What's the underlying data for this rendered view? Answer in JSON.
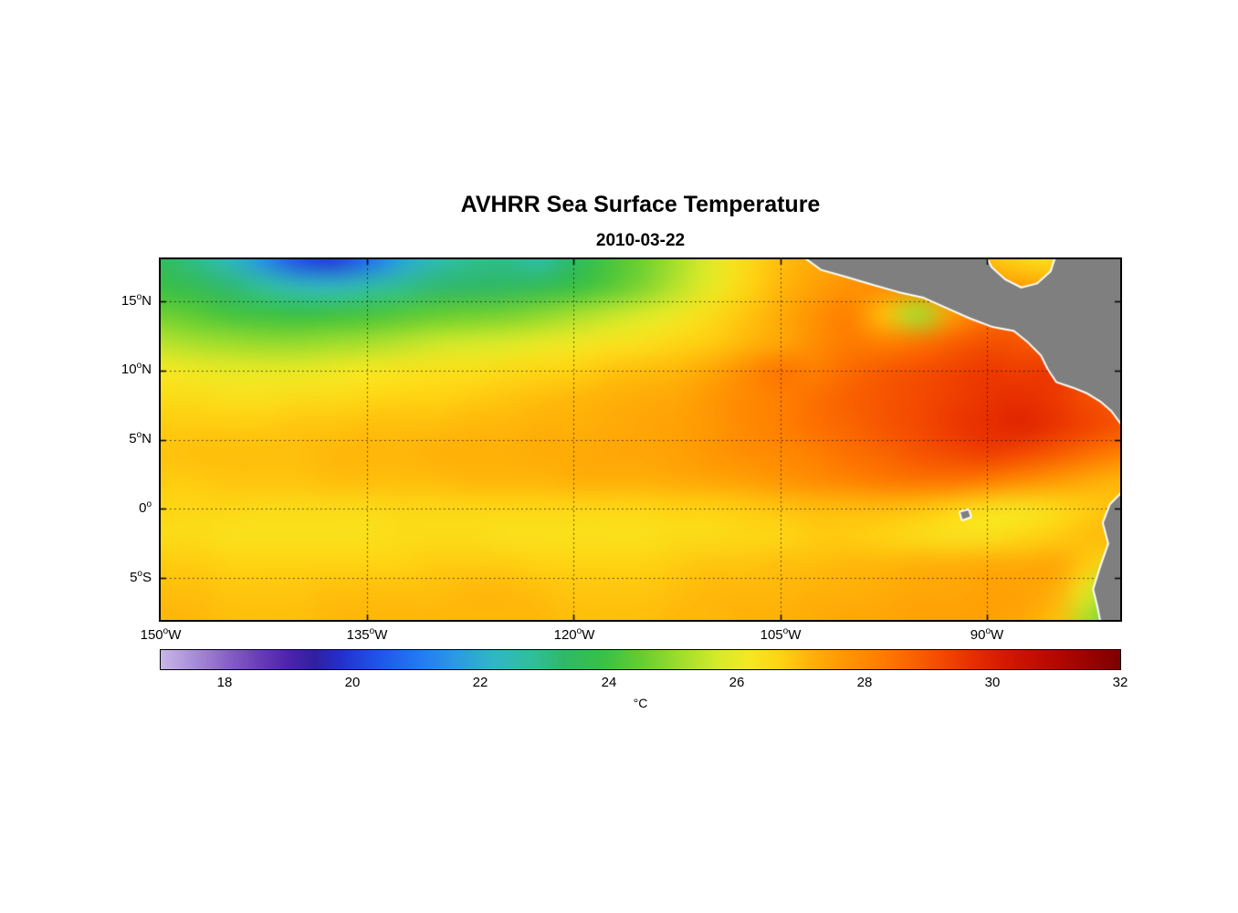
{
  "figure": {
    "title": "AVHRR Sea Surface Temperature",
    "date": "2010-03-22"
  },
  "chart_data": {
    "type": "heatmap",
    "title": "AVHRR Sea Surface Temperature",
    "subtitle": "2010-03-22",
    "unit": "°C",
    "x_range": [
      -150,
      -80.3
    ],
    "y_range": [
      -8,
      18
    ],
    "grid_on": true,
    "lat_ticks": [
      {
        "v": 15,
        "num": "15",
        "deg": "o",
        "dir": "N"
      },
      {
        "v": 10,
        "num": "10",
        "deg": "o",
        "dir": "N"
      },
      {
        "v": 5,
        "num": "5",
        "deg": "o",
        "dir": "N"
      },
      {
        "v": 0,
        "num": "0",
        "deg": "o",
        "dir": ""
      },
      {
        "v": -5,
        "num": "5",
        "deg": "o",
        "dir": "S"
      }
    ],
    "lon_ticks": [
      {
        "v": -150,
        "num": "150",
        "deg": "o",
        "dir": "W"
      },
      {
        "v": -135,
        "num": "135",
        "deg": "o",
        "dir": "W"
      },
      {
        "v": -120,
        "num": "120",
        "deg": "o",
        "dir": "W"
      },
      {
        "v": -105,
        "num": "105",
        "deg": "o",
        "dir": "W"
      },
      {
        "v": -90,
        "num": "90",
        "deg": "o",
        "dir": "W"
      }
    ],
    "colorbar_ticks": [
      18,
      20,
      22,
      24,
      26,
      28,
      30,
      32
    ],
    "colormap": {
      "range": [
        17,
        32
      ],
      "stops": [
        [
          17.0,
          "#c9b7e8"
        ],
        [
          17.5,
          "#a98fd9"
        ],
        [
          18.0,
          "#8a64c8"
        ],
        [
          18.5,
          "#6c3fb8"
        ],
        [
          19.0,
          "#4d23ac"
        ],
        [
          19.4,
          "#31209f"
        ],
        [
          19.8,
          "#2330cc"
        ],
        [
          20.4,
          "#1f55ea"
        ],
        [
          21.0,
          "#2377f2"
        ],
        [
          21.6,
          "#2c99e2"
        ],
        [
          22.2,
          "#30b6c6"
        ],
        [
          22.8,
          "#30bf9b"
        ],
        [
          23.3,
          "#30b868"
        ],
        [
          23.9,
          "#39c046"
        ],
        [
          24.5,
          "#64cd32"
        ],
        [
          25.1,
          "#9edd2d"
        ],
        [
          25.7,
          "#d4ea2a"
        ],
        [
          26.2,
          "#f6e822"
        ],
        [
          26.7,
          "#ffd312"
        ],
        [
          27.2,
          "#ffb008"
        ],
        [
          27.7,
          "#ff9703"
        ],
        [
          28.2,
          "#ff8000"
        ],
        [
          28.7,
          "#fa6600"
        ],
        [
          29.2,
          "#f34a00"
        ],
        [
          29.7,
          "#e72e00"
        ],
        [
          30.2,
          "#d61800"
        ],
        [
          30.8,
          "#bd0b00"
        ],
        [
          31.4,
          "#a00400"
        ],
        [
          32.0,
          "#7d0000"
        ]
      ]
    },
    "grid_lons": [
      -150,
      -147.5,
      -145,
      -142.5,
      -140,
      -137.5,
      -135,
      -132.5,
      -130,
      -127.5,
      -125,
      -122.5,
      -120,
      -117.5,
      -115,
      -112.5,
      -110,
      -107.5,
      -105,
      -102.5,
      -100,
      -97.5,
      -95,
      -92.5,
      -90,
      -87.5,
      -85,
      -82.5,
      -80
    ],
    "grid_lats": [
      18,
      16,
      14,
      12,
      10,
      8,
      6,
      4,
      2,
      0,
      -2,
      -4,
      -6,
      -8
    ],
    "sst": [
      [
        23.5,
        23.0,
        22.3,
        21.4,
        20.3,
        20.0,
        20.8,
        21.8,
        22.5,
        22.9,
        23.0,
        22.6,
        23.4,
        24.1,
        24.6,
        25.2,
        25.9,
        26.5,
        27.0,
        27.3,
        27.5,
        27.5,
        27.5,
        27.4,
        27.0,
        26.6,
        26.4,
        26.3,
        26.3
      ],
      [
        23.9,
        23.6,
        23.2,
        22.8,
        22.4,
        22.3,
        22.6,
        22.9,
        23.2,
        23.3,
        23.4,
        23.6,
        23.9,
        24.3,
        24.8,
        25.4,
        26.0,
        26.6,
        27.1,
        27.5,
        27.8,
        27.9,
        27.9,
        27.9,
        27.8,
        27.6,
        27.4,
        27.2,
        27.0
      ],
      [
        24.6,
        24.4,
        24.1,
        24.0,
        23.9,
        24.0,
        24.1,
        24.3,
        24.5,
        24.6,
        24.7,
        24.9,
        25.2,
        25.5,
        25.8,
        26.1,
        26.5,
        26.9,
        27.3,
        27.8,
        28.2,
        27.0,
        25.2,
        27.6,
        28.4,
        28.6,
        28.4,
        28.2,
        28.0
      ],
      [
        25.4,
        25.2,
        25.1,
        25.0,
        25.0,
        25.1,
        25.2,
        25.4,
        25.6,
        25.7,
        25.8,
        26.0,
        26.1,
        26.3,
        26.4,
        26.6,
        26.8,
        27.1,
        27.4,
        27.9,
        28.3,
        28.2,
        28.4,
        28.8,
        29.1,
        29.0,
        28.8,
        28.6,
        28.4
      ],
      [
        26.2,
        26.1,
        26.0,
        26.0,
        26.0,
        26.1,
        26.2,
        26.3,
        26.4,
        26.4,
        26.5,
        26.6,
        26.7,
        26.9,
        27.0,
        27.1,
        27.4,
        27.9,
        28.4,
        28.2,
        28.6,
        28.9,
        29.1,
        29.3,
        29.5,
        29.4,
        29.5,
        29.1,
        28.8
      ],
      [
        26.5,
        26.5,
        26.4,
        26.4,
        26.5,
        26.5,
        26.6,
        26.7,
        26.7,
        26.8,
        26.9,
        27.0,
        27.1,
        27.2,
        27.3,
        27.4,
        27.7,
        28.0,
        28.2,
        28.5,
        28.8,
        29.0,
        29.2,
        29.4,
        29.6,
        29.7,
        29.5,
        29.1,
        28.9
      ],
      [
        26.8,
        26.8,
        26.8,
        26.8,
        26.9,
        26.9,
        27.0,
        27.0,
        27.0,
        27.1,
        27.1,
        27.2,
        27.2,
        27.3,
        27.4,
        27.5,
        27.7,
        28.0,
        28.2,
        28.5,
        28.7,
        29.0,
        29.2,
        29.5,
        29.7,
        29.9,
        29.6,
        29.3,
        29.0
      ],
      [
        26.9,
        27.0,
        27.0,
        27.0,
        27.0,
        27.1,
        27.1,
        27.1,
        27.2,
        27.2,
        27.2,
        27.3,
        27.3,
        27.4,
        27.4,
        27.5,
        27.7,
        27.9,
        28.0,
        28.2,
        28.5,
        28.7,
        29.0,
        29.2,
        29.4,
        29.2,
        28.9,
        28.5,
        28.2
      ],
      [
        26.8,
        26.8,
        26.9,
        26.9,
        26.9,
        27.0,
        27.0,
        27.0,
        27.0,
        27.1,
        27.1,
        27.1,
        27.2,
        27.2,
        27.2,
        27.3,
        27.4,
        27.5,
        27.7,
        27.9,
        28.1,
        28.3,
        28.4,
        28.4,
        28.2,
        27.9,
        27.6,
        27.3,
        27.1
      ],
      [
        26.6,
        26.6,
        26.6,
        26.5,
        26.5,
        26.5,
        26.5,
        26.6,
        26.6,
        26.6,
        26.6,
        26.6,
        26.6,
        26.6,
        26.6,
        26.7,
        26.7,
        26.8,
        26.9,
        27.0,
        27.0,
        27.0,
        26.9,
        26.7,
        26.4,
        26.3,
        26.5,
        26.8,
        27.0
      ],
      [
        26.5,
        26.5,
        26.4,
        26.4,
        26.4,
        26.4,
        26.4,
        26.5,
        26.5,
        26.5,
        26.4,
        26.4,
        26.4,
        26.4,
        26.4,
        26.5,
        26.5,
        26.6,
        26.6,
        26.8,
        26.8,
        26.7,
        26.5,
        26.4,
        26.4,
        26.6,
        26.8,
        27.0,
        27.1
      ],
      [
        26.8,
        26.8,
        26.7,
        26.7,
        26.7,
        26.7,
        26.7,
        26.7,
        26.8,
        26.8,
        26.8,
        26.7,
        26.7,
        26.7,
        26.7,
        26.8,
        26.9,
        26.9,
        27.0,
        27.0,
        27.1,
        27.1,
        27.2,
        27.2,
        27.3,
        27.3,
        27.4,
        26.8,
        25.6
      ],
      [
        27.0,
        27.0,
        26.9,
        26.9,
        26.9,
        27.0,
        27.0,
        27.0,
        27.0,
        27.1,
        27.1,
        27.0,
        26.9,
        26.9,
        26.9,
        27.0,
        27.1,
        27.1,
        27.1,
        27.2,
        27.2,
        27.3,
        27.4,
        27.4,
        27.5,
        27.5,
        27.2,
        25.8,
        24.0
      ],
      [
        27.1,
        27.1,
        27.0,
        27.0,
        27.0,
        27.1,
        27.1,
        27.1,
        27.1,
        27.1,
        27.1,
        27.1,
        27.0,
        27.0,
        27.0,
        27.1,
        27.1,
        27.2,
        27.2,
        27.3,
        27.4,
        27.4,
        27.5,
        27.5,
        27.5,
        27.4,
        27.0,
        25.2,
        23.6
      ]
    ],
    "land_color": "#7f7f7f",
    "coast_color": "#ffffff",
    "land_polygons": {
      "central_america": [
        [
          -103.8,
          18.6
        ],
        [
          -102.0,
          17.3
        ],
        [
          -100.2,
          16.8
        ],
        [
          -98.2,
          16.2
        ],
        [
          -96.4,
          15.7
        ],
        [
          -94.6,
          15.3
        ],
        [
          -93.0,
          14.6
        ],
        [
          -91.2,
          13.8
        ],
        [
          -89.6,
          13.2
        ],
        [
          -88.0,
          12.9
        ],
        [
          -87.0,
          12.1
        ],
        [
          -86.0,
          11.1
        ],
        [
          -85.5,
          10.1
        ],
        [
          -84.9,
          9.2
        ],
        [
          -83.7,
          8.8
        ],
        [
          -82.7,
          8.4
        ],
        [
          -81.7,
          7.8
        ],
        [
          -80.9,
          7.1
        ],
        [
          -80.0,
          5.9
        ],
        [
          -80.0,
          18.6
        ],
        [
          -84.8,
          18.6
        ],
        [
          -85.3,
          17.1
        ],
        [
          -86.3,
          16.2
        ],
        [
          -87.5,
          15.9
        ],
        [
          -88.7,
          16.5
        ],
        [
          -89.7,
          17.4
        ],
        [
          -90.3,
          18.6
        ]
      ],
      "south_america": [
        [
          -80.0,
          1.3
        ],
        [
          -81.0,
          0.3
        ],
        [
          -81.5,
          -1.0
        ],
        [
          -81.1,
          -2.5
        ],
        [
          -81.7,
          -4.2
        ],
        [
          -82.2,
          -5.8
        ],
        [
          -81.9,
          -7.0
        ],
        [
          -81.6,
          -8.5
        ],
        [
          -80.0,
          -8.5
        ]
      ],
      "galapagos": [
        [
          -91.9,
          -0.25
        ],
        [
          -91.35,
          -0.1
        ],
        [
          -91.2,
          -0.55
        ],
        [
          -91.75,
          -0.75
        ]
      ]
    }
  }
}
